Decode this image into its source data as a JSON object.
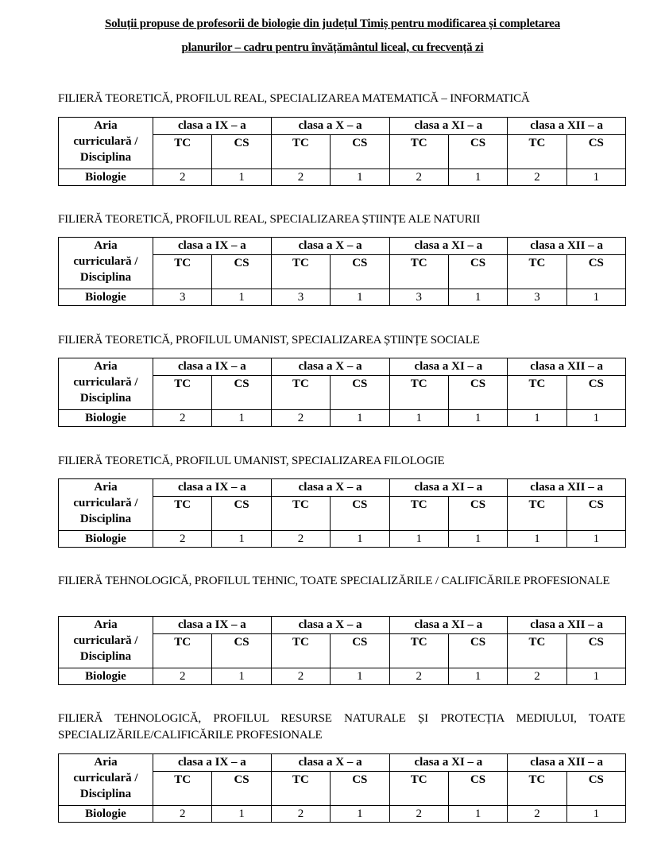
{
  "title": {
    "line1": "Soluții propuse de profesorii de biologie din județul Timiș pentru modificarea și completarea",
    "line2": "planurilor – cadru pentru învățământul liceal, cu frecvență zi"
  },
  "table_header": {
    "aria_line1": "Aria",
    "aria_line2": "curriculară /",
    "aria_line3": "Disciplina",
    "classes": [
      "clasa a IX – a",
      "clasa a X – a",
      "clasa a XI – a",
      "clasa a XII – a"
    ],
    "tc": "TC",
    "cs": "CS"
  },
  "sections": [
    {
      "heading": "FILIERĂ TEORETICĂ, PROFILUL REAL, SPECIALIZAREA MATEMATICĂ – INFORMATICĂ",
      "discipline": "Biologie",
      "values": [
        "2",
        "1",
        "2",
        "1",
        "2",
        "1",
        "2",
        "1"
      ]
    },
    {
      "heading": "FILIERĂ TEORETICĂ, PROFILUL REAL, SPECIALIZAREA ȘTIINȚE ALE NATURII",
      "discipline": "Biologie",
      "values": [
        "3",
        "1",
        "3",
        "1",
        "3",
        "1",
        "3",
        "1"
      ]
    },
    {
      "heading": "FILIERĂ TEORETICĂ, PROFILUL UMANIST, SPECIALIZAREA ȘTIINȚE SOCIALE",
      "discipline": "Biologie",
      "values": [
        "2",
        "1",
        "2",
        "1",
        "1",
        "1",
        "1",
        "1"
      ]
    },
    {
      "heading": "FILIERĂ TEORETICĂ, PROFILUL UMANIST, SPECIALIZAREA FILOLOGIE",
      "discipline": "Biologie",
      "values": [
        "2",
        "1",
        "2",
        "1",
        "1",
        "1",
        "1",
        "1"
      ]
    },
    {
      "heading": "FILIERĂ TEHNOLOGICĂ, PROFILUL TEHNIC, TOATE SPECIALIZĂRILE / CALIFICĂRILE PROFESIONALE",
      "discipline": "Biologie",
      "values": [
        "2",
        "1",
        "2",
        "1",
        "2",
        "1",
        "2",
        "1"
      ]
    },
    {
      "heading": "FILIERĂ TEHNOLOGICĂ, PROFILUL RESURSE NATURALE ȘI PROTECȚIA MEDIULUI, TOATE SPECIALIZĂRILE/CALIFICĂRILE PROFESIONALE",
      "discipline": "Biologie",
      "values": [
        "2",
        "1",
        "2",
        "1",
        "2",
        "1",
        "2",
        "1"
      ]
    }
  ]
}
